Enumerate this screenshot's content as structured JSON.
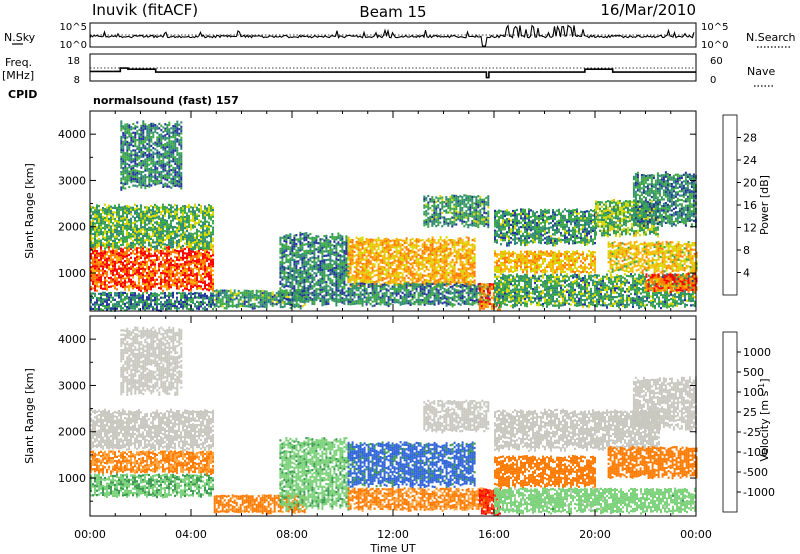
{
  "header": {
    "station": "Inuvik (fitACF)",
    "beam": "Beam 15",
    "date": "16/Mar/2010"
  },
  "status_panel": {
    "left_label": "N.Sky",
    "right_label": "N.Search",
    "left_ticks": [
      "10^5",
      "10^0"
    ],
    "right_ticks": [
      "10^5",
      "10^0"
    ]
  },
  "freq_panel": {
    "left_label_1": "Freq.",
    "left_label_2": "[MHz]",
    "right_label": "Nave",
    "left_ticks": [
      "18",
      "8"
    ],
    "right_ticks": [
      "60",
      "0"
    ]
  },
  "cpid": {
    "label": "CPID",
    "program": "normalsound (fast) 157"
  },
  "chart_data": [
    {
      "type": "heatmap",
      "name": "power",
      "ylabel": "Slant Range [km]",
      "xlabel": "",
      "xlim": [
        0,
        24
      ],
      "ylim": [
        180,
        4500
      ],
      "yticks": [
        "1000",
        "2000",
        "3000",
        "4000"
      ],
      "colorbar": {
        "label": "Power [dB]",
        "ticks": [
          "28",
          "24",
          "20",
          "16",
          "12",
          "8",
          "4"
        ],
        "colors": [
          "#ff0000",
          "#ff7a00",
          "#ffb000",
          "#d8d800",
          "#3ca844",
          "#2e8a73",
          "#24339c",
          "#0000ff"
        ],
        "range": [
          0,
          30
        ]
      },
      "regions": [
        {
          "t": [
            0.0,
            4.9
          ],
          "r": [
            600,
            1600
          ],
          "v": 26
        },
        {
          "t": [
            0.0,
            4.9
          ],
          "r": [
            1500,
            2500
          ],
          "v": 13
        },
        {
          "t": [
            0.0,
            4.9
          ],
          "r": [
            200,
            600
          ],
          "v": 9
        },
        {
          "t": [
            1.2,
            3.6
          ],
          "r": [
            2800,
            4300
          ],
          "v": 10
        },
        {
          "t": [
            4.9,
            8.5
          ],
          "r": [
            250,
            650
          ],
          "v": 11
        },
        {
          "t": [
            7.5,
            10.2
          ],
          "r": [
            300,
            1900
          ],
          "v": 10
        },
        {
          "t": [
            10.2,
            15.2
          ],
          "r": [
            700,
            1800
          ],
          "v": 21
        },
        {
          "t": [
            10.2,
            15.8
          ],
          "r": [
            300,
            800
          ],
          "v": 10
        },
        {
          "t": [
            13.2,
            15.8
          ],
          "r": [
            2000,
            2700
          ],
          "v": 11
        },
        {
          "t": [
            15.4,
            16.2
          ],
          "r": [
            200,
            800
          ],
          "v": 24
        },
        {
          "t": [
            16.0,
            20.0
          ],
          "r": [
            1000,
            1500
          ],
          "v": 20
        },
        {
          "t": [
            16.0,
            20.0
          ],
          "r": [
            1600,
            2400
          ],
          "v": 11
        },
        {
          "t": [
            16.0,
            24.0
          ],
          "r": [
            250,
            1000
          ],
          "v": 12
        },
        {
          "t": [
            20.0,
            22.5
          ],
          "r": [
            1800,
            2600
          ],
          "v": 14
        },
        {
          "t": [
            20.5,
            24.0
          ],
          "r": [
            1000,
            1700
          ],
          "v": 19
        },
        {
          "t": [
            22.0,
            24.0
          ],
          "r": [
            600,
            1000
          ],
          "v": 25
        },
        {
          "t": [
            21.5,
            24.0
          ],
          "r": [
            2000,
            3200
          ],
          "v": 10
        }
      ]
    },
    {
      "type": "heatmap",
      "name": "velocity",
      "ylabel": "Slant Range [km]",
      "xlabel": "Time UT",
      "xlim": [
        0,
        24
      ],
      "ylim": [
        180,
        4500
      ],
      "xticks": [
        "00:00",
        "04:00",
        "08:00",
        "12:00",
        "16:00",
        "20:00",
        "00:00"
      ],
      "yticks": [
        "1000",
        "2000",
        "3000",
        "4000"
      ],
      "colorbar": {
        "label": "Velocity",
        "unit_base": "[m s",
        "unit_exp": "-1",
        "unit_close": "]",
        "ticks": [
          "1000",
          "500",
          "100",
          "25",
          "-25",
          "-100",
          "-500",
          "-1000"
        ],
        "colors": [
          "#1a32c8",
          "#2f64d8",
          "#3c9a52",
          "#7cd27a",
          "#c8c8c0",
          "#ffa640",
          "#ff7a00",
          "#ff3a00",
          "#ff0000"
        ]
      },
      "regions": [
        {
          "t": [
            0.0,
            4.9
          ],
          "r": [
            600,
            1100
          ],
          "v": 90
        },
        {
          "t": [
            0.0,
            4.9
          ],
          "r": [
            1100,
            1600
          ],
          "v": -110
        },
        {
          "t": [
            0.0,
            4.9
          ],
          "r": [
            1600,
            2500
          ],
          "v": 0
        },
        {
          "t": [
            1.2,
            3.6
          ],
          "r": [
            2800,
            4300
          ],
          "v": 0
        },
        {
          "t": [
            4.9,
            8.5
          ],
          "r": [
            250,
            650
          ],
          "v": -150
        },
        {
          "t": [
            7.5,
            10.2
          ],
          "r": [
            300,
            1900
          ],
          "v": 80
        },
        {
          "t": [
            10.2,
            15.2
          ],
          "r": [
            800,
            1800
          ],
          "v": 700
        },
        {
          "t": [
            10.2,
            15.8
          ],
          "r": [
            300,
            800
          ],
          "v": -120
        },
        {
          "t": [
            13.2,
            15.8
          ],
          "r": [
            2000,
            2700
          ],
          "v": 0
        },
        {
          "t": [
            15.4,
            16.2
          ],
          "r": [
            200,
            800
          ],
          "v": -900
        },
        {
          "t": [
            16.0,
            20.0
          ],
          "r": [
            800,
            1500
          ],
          "v": -300
        },
        {
          "t": [
            16.0,
            22.5
          ],
          "r": [
            1600,
            2500
          ],
          "v": 0
        },
        {
          "t": [
            16.0,
            24.0
          ],
          "r": [
            250,
            800
          ],
          "v": 60
        },
        {
          "t": [
            20.5,
            24.0
          ],
          "r": [
            1000,
            1700
          ],
          "v": -200
        },
        {
          "t": [
            21.5,
            24.0
          ],
          "r": [
            2000,
            3200
          ],
          "v": 0
        }
      ]
    }
  ]
}
